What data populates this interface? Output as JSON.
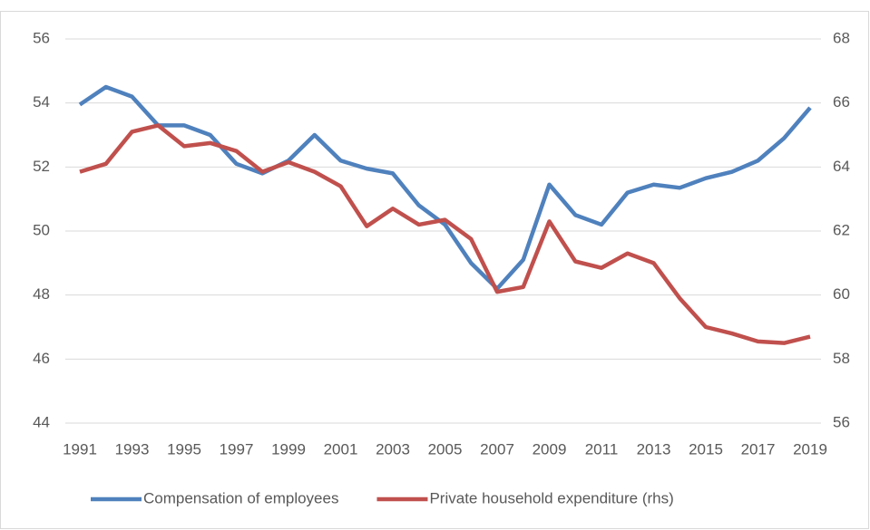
{
  "chart_data": {
    "type": "line",
    "x": [
      1991,
      1992,
      1993,
      1994,
      1995,
      1996,
      1997,
      1998,
      1999,
      2000,
      2001,
      2002,
      2003,
      2004,
      2005,
      2006,
      2007,
      2008,
      2009,
      2010,
      2011,
      2012,
      2013,
      2014,
      2015,
      2016,
      2017,
      2018,
      2019
    ],
    "xlim": [
      1991,
      2019
    ],
    "xticks": [
      1991,
      1993,
      1995,
      1997,
      1999,
      2001,
      2003,
      2005,
      2007,
      2009,
      2011,
      2013,
      2015,
      2017,
      2019
    ],
    "ylim": [
      44,
      56
    ],
    "yticks": [
      44,
      46,
      48,
      50,
      52,
      54,
      56
    ],
    "y2lim": [
      56,
      68
    ],
    "y2ticks": [
      56,
      58,
      60,
      62,
      64,
      66,
      68
    ],
    "grid": true,
    "legend": "bottom",
    "series": [
      {
        "name": "Compensation of employees",
        "color": "#4f81bd",
        "values": [
          53.95,
          54.5,
          54.2,
          53.3,
          53.3,
          53.0,
          52.1,
          51.8,
          52.2,
          53.0,
          52.2,
          51.95,
          51.8,
          50.8,
          50.2,
          49.0,
          48.2,
          49.1,
          51.45,
          50.5,
          50.2,
          51.2,
          51.45,
          51.35,
          51.65,
          51.85,
          52.2,
          52.9,
          53.85
        ]
      },
      {
        "name": "Private household expenditure (rhs)",
        "color": "#c0504d",
        "axis": "y2",
        "values": [
          63.85,
          64.1,
          65.1,
          65.3,
          64.65,
          64.75,
          64.5,
          63.85,
          64.15,
          63.85,
          63.4,
          62.15,
          62.7,
          62.2,
          62.35,
          61.75,
          60.1,
          60.25,
          62.3,
          61.05,
          60.85,
          61.3,
          61.0,
          59.9,
          59.0,
          58.8,
          58.55,
          58.5,
          58.7
        ]
      }
    ]
  }
}
